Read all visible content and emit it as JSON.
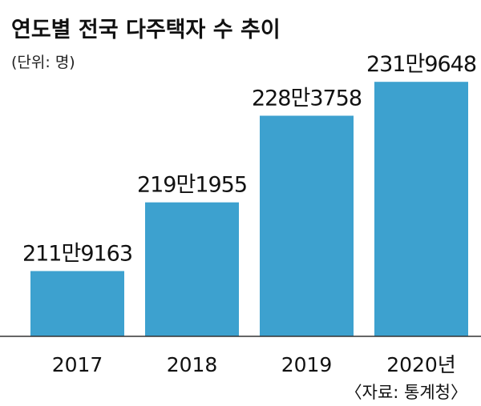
{
  "chart_data": {
    "type": "bar",
    "title": "연도별 전국 다주택자 수 추이",
    "unit_label": "(단위: 명)",
    "categories": [
      "2017",
      "2018",
      "2019",
      "2020년"
    ],
    "values": [
      2119163,
      2191955,
      2283758,
      2319648
    ],
    "value_labels": [
      "211만9163",
      "219만1955",
      "228만3758",
      "231만9648"
    ],
    "source": "〈자료: 통계청〉",
    "ylim": [
      2050000,
      2330000
    ],
    "grid": false,
    "legend": "none",
    "bar_color": "#3da1cf"
  }
}
